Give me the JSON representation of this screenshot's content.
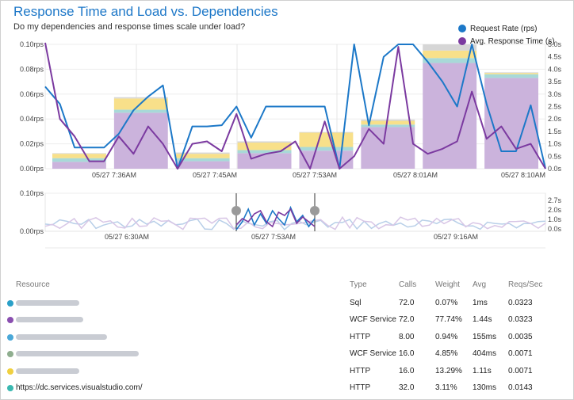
{
  "title": "Response Time and Load vs. Dependencies",
  "subtitle": "Do my dependencies and response times scale under load?",
  "legend": [
    {
      "label": "Request Rate (rps)",
      "color": "#1c78c8"
    },
    {
      "label": "Avg. Response Time (s)",
      "color": "#7b3aa0"
    }
  ],
  "colors": {
    "purple_fill": "#cbb3dc",
    "yellow": "#f8e08a",
    "teal": "#a8d9d8",
    "blue_line": "#1c78c8",
    "purple_line": "#7b3aa0",
    "grey": "#d6d6d6"
  },
  "chart_data": [
    {
      "type": "bar",
      "name": "main",
      "y_ticks_left": [
        "0.10rps",
        "0.08rps",
        "0.06rps",
        "0.04rps",
        "0.02rps",
        "0.00rps"
      ],
      "y_ticks_right": [
        "5.0s",
        "4.5s",
        "4.0s",
        "3.5s",
        "3.0s",
        "2.5s",
        "2.0s",
        "1.5s",
        "1.0s",
        "0.5s",
        "0.0s"
      ],
      "ylim_left": [
        0,
        0.1
      ],
      "ylim_right": [
        0,
        5.0
      ],
      "x_labels": [
        "05/27 7:36AM",
        "05/27 7:45AM",
        "05/27 7:53AM",
        "05/27 8:01AM",
        "05/27 8:10AM"
      ],
      "bars": [
        {
          "purple": 0.0055,
          "teal": 0.003,
          "yellow": 0.0035,
          "grey": 0.0005
        },
        {
          "purple": 0.045,
          "teal": 0.0025,
          "yellow": 0.009,
          "grey": 0.001
        },
        {
          "purple": 0.006,
          "teal": 0.0025,
          "yellow": 0.0035,
          "grey": 0.001
        },
        {
          "purple": 0.0125,
          "teal": 0.0025,
          "yellow": 0.006,
          "grey": 0.001
        },
        {
          "purple": 0.0145,
          "teal": 0.003,
          "yellow": 0.0115,
          "grey": 0.0005
        },
        {
          "purple": 0.0335,
          "teal": 0.002,
          "yellow": 0.003,
          "grey": 0.001
        },
        {
          "purple": 0.085,
          "teal": 0.004,
          "yellow": 0.006,
          "grey": 0.005
        },
        {
          "purple": 0.073,
          "teal": 0.003,
          "yellow": 0.001,
          "grey": 0.0005
        }
      ],
      "series": [
        {
          "name": "Request Rate (rps)",
          "axis": "left",
          "values": [
            0.066,
            0.052,
            0.017,
            0.017,
            0.017,
            0.028,
            0.047,
            0.058,
            0.067,
            0.0,
            0.034,
            0.034,
            0.035,
            0.05,
            0.025,
            0.05,
            0.05,
            0.05,
            0.05,
            0.05,
            0.0,
            0.1,
            0.035,
            0.09,
            0.1,
            0.1,
            0.086,
            0.07,
            0.05,
            0.1,
            0.052,
            0.014,
            0.014,
            0.051,
            0.0
          ]
        },
        {
          "name": "Avg. Response Time (s)",
          "axis": "right",
          "values": [
            5.1,
            2.0,
            1.3,
            0.3,
            0.3,
            1.3,
            0.6,
            1.7,
            1.0,
            0.0,
            1.0,
            1.1,
            0.7,
            2.2,
            0.4,
            0.6,
            0.7,
            1.1,
            0.0,
            1.9,
            0.0,
            0.5,
            1.6,
            1.0,
            4.9,
            1.0,
            0.6,
            0.8,
            1.1,
            3.1,
            1.2,
            1.7,
            0.8,
            1.0,
            0.0
          ]
        }
      ]
    },
    {
      "type": "line",
      "name": "overview",
      "y_ticks_left": [
        "0.10rps",
        "0.00rps"
      ],
      "y_ticks_right": [
        "2.7s",
        "2.0s",
        "1.0s",
        "0.0s"
      ],
      "x_labels": [
        "05/27 6:30AM",
        "05/27 7:53AM",
        "05/27 9:16AM"
      ]
    }
  ],
  "table": {
    "headers": {
      "resource": "Resource",
      "type": "Type",
      "calls": "Calls",
      "weight": "Weight",
      "avg": "Avg",
      "reqs": "Reqs/Sec"
    },
    "rows": [
      {
        "color": "#2aa0c8",
        "resource": "",
        "blur": 80,
        "type": "Sql",
        "calls": "72.0",
        "weight": "0.07%",
        "avg": "1ms",
        "reqs": "0.0323"
      },
      {
        "color": "#8a4fb0",
        "resource": "",
        "blur": 85,
        "type": "WCF Service",
        "calls": "72.0",
        "weight": "77.74%",
        "avg": "1.44s",
        "reqs": "0.0323"
      },
      {
        "color": "#4aa8d8",
        "resource": "",
        "blur": 115,
        "type": "HTTP",
        "calls": "8.00",
        "weight": "0.94%",
        "avg": "155ms",
        "reqs": "0.0035"
      },
      {
        "color": "#8fae8f",
        "resource": "",
        "blur": 155,
        "type": "WCF Service",
        "calls": "16.0",
        "weight": "4.85%",
        "avg": "404ms",
        "reqs": "0.0071"
      },
      {
        "color": "#f0d040",
        "resource": "",
        "blur": 80,
        "type": "HTTP",
        "calls": "16.0",
        "weight": "13.29%",
        "avg": "1.11s",
        "reqs": "0.0071"
      },
      {
        "color": "#3ab8b0",
        "resource": "https://dc.services.visualstudio.com/",
        "blur": 0,
        "type": "HTTP",
        "calls": "32.0",
        "weight": "3.11%",
        "avg": "130ms",
        "reqs": "0.0143"
      }
    ]
  }
}
